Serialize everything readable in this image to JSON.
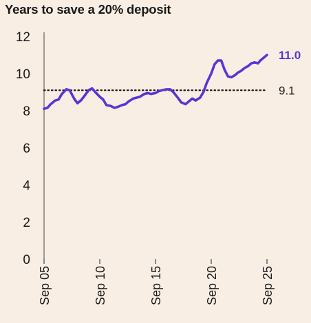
{
  "chart_data": {
    "type": "line",
    "title": "Years to save a 20% deposit",
    "xlabel": "",
    "ylabel": "",
    "ylim": [
      0,
      12
    ],
    "yticks": [
      "0",
      "2",
      "4",
      "6",
      "8",
      "10",
      "12"
    ],
    "xticks": [
      "Sep 05",
      "Sep 10",
      "Sep 15",
      "Sep 20",
      "Sep 25"
    ],
    "xlim": [
      2005.7,
      2025.7
    ],
    "grid": false,
    "line_color": "#5a35d6",
    "end_value_label": "11.0",
    "reference_line": {
      "value": 9.1,
      "label": "9.1",
      "style": "dotted"
    },
    "series": [
      {
        "x": [
          2005.7,
          2006.0,
          2006.3,
          2006.7,
          2007.0,
          2007.3,
          2007.7,
          2008.0,
          2008.4,
          2008.7,
          2009.0,
          2009.4,
          2009.7,
          2010.0,
          2010.3,
          2010.7,
          2011.0,
          2011.3,
          2011.7,
          2012.0,
          2012.3,
          2012.7,
          2013.0,
          2013.3,
          2013.7,
          2014.0,
          2014.3,
          2014.7,
          2015.0,
          2015.3,
          2015.7,
          2016.0,
          2016.3,
          2016.7,
          2017.0,
          2017.3,
          2017.7,
          2018.0,
          2018.4,
          2018.7,
          2019.0,
          2019.3,
          2019.7,
          2020.0,
          2020.3,
          2020.7,
          2021.0,
          2021.3,
          2021.6,
          2021.9,
          2022.2,
          2022.5,
          2022.8,
          2023.1,
          2023.4,
          2023.7,
          2024.0,
          2024.3,
          2024.6,
          2024.9,
          2025.1,
          2025.4,
          2025.7
        ],
        "values": [
          8.1,
          8.15,
          8.35,
          8.55,
          8.6,
          8.9,
          9.15,
          9.1,
          8.65,
          8.4,
          8.55,
          8.85,
          9.1,
          9.2,
          9.0,
          8.75,
          8.6,
          8.3,
          8.25,
          8.15,
          8.2,
          8.3,
          8.35,
          8.5,
          8.65,
          8.7,
          8.75,
          8.9,
          8.95,
          8.9,
          8.95,
          9.05,
          9.1,
          9.15,
          9.15,
          9.0,
          8.7,
          8.45,
          8.35,
          8.5,
          8.65,
          8.55,
          8.7,
          9.0,
          9.5,
          10.0,
          10.5,
          10.7,
          10.7,
          10.2,
          9.85,
          9.8,
          9.9,
          10.05,
          10.15,
          10.3,
          10.4,
          10.55,
          10.6,
          10.55,
          10.7,
          10.85,
          11.0
        ]
      }
    ]
  }
}
